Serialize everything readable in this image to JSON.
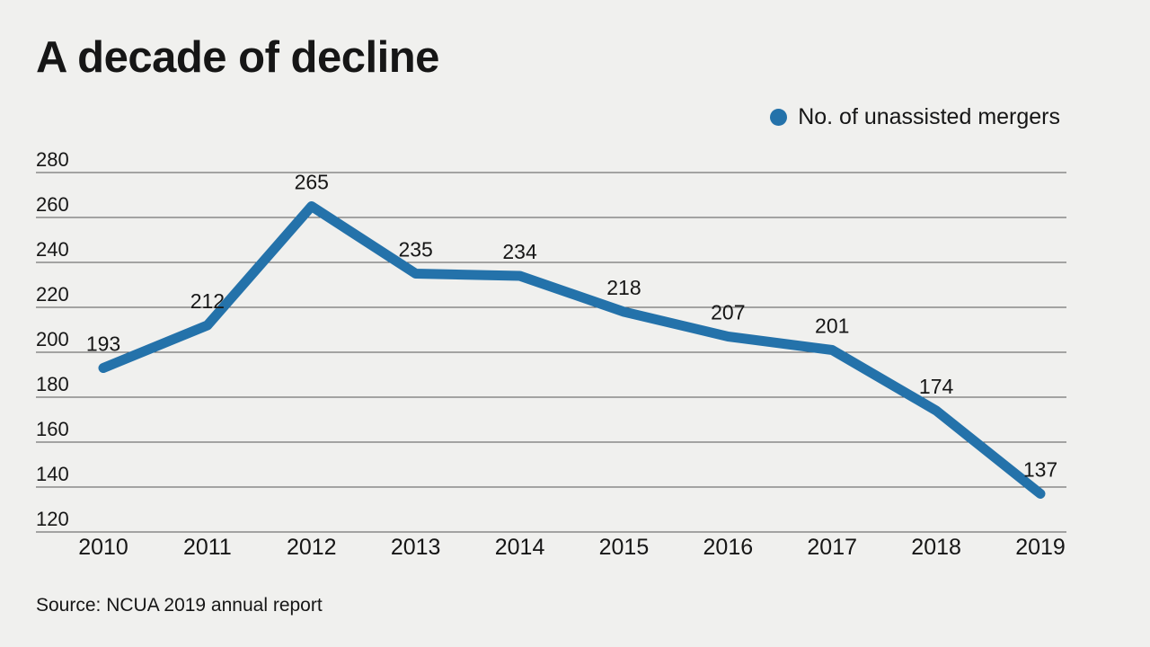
{
  "title": "A decade of decline",
  "legend": {
    "label": "No. of unassisted mergers",
    "marker_color": "#2472aa"
  },
  "source": "Source: NCUA 2019 annual report",
  "colors": {
    "background": "#f0f0ee",
    "line": "#2472aa",
    "gridline": "#565656",
    "text": "#161616"
  },
  "chart_data": {
    "type": "line",
    "title": "A decade of decline",
    "x": [
      "2010",
      "2011",
      "2012",
      "2013",
      "2014",
      "2015",
      "2016",
      "2017",
      "2018",
      "2019"
    ],
    "series": [
      {
        "name": "No. of unassisted mergers",
        "values": [
          193,
          212,
          265,
          235,
          234,
          218,
          207,
          201,
          174,
          137
        ]
      }
    ],
    "ylim": [
      120,
      280
    ],
    "yticks": [
      280,
      260,
      240,
      220,
      200,
      180,
      160,
      140,
      120
    ],
    "xlabel": "",
    "ylabel": "",
    "grid": "horizontal",
    "legend_position": "top-right",
    "data_labels": true,
    "source": "Source: NCUA 2019 annual report"
  }
}
